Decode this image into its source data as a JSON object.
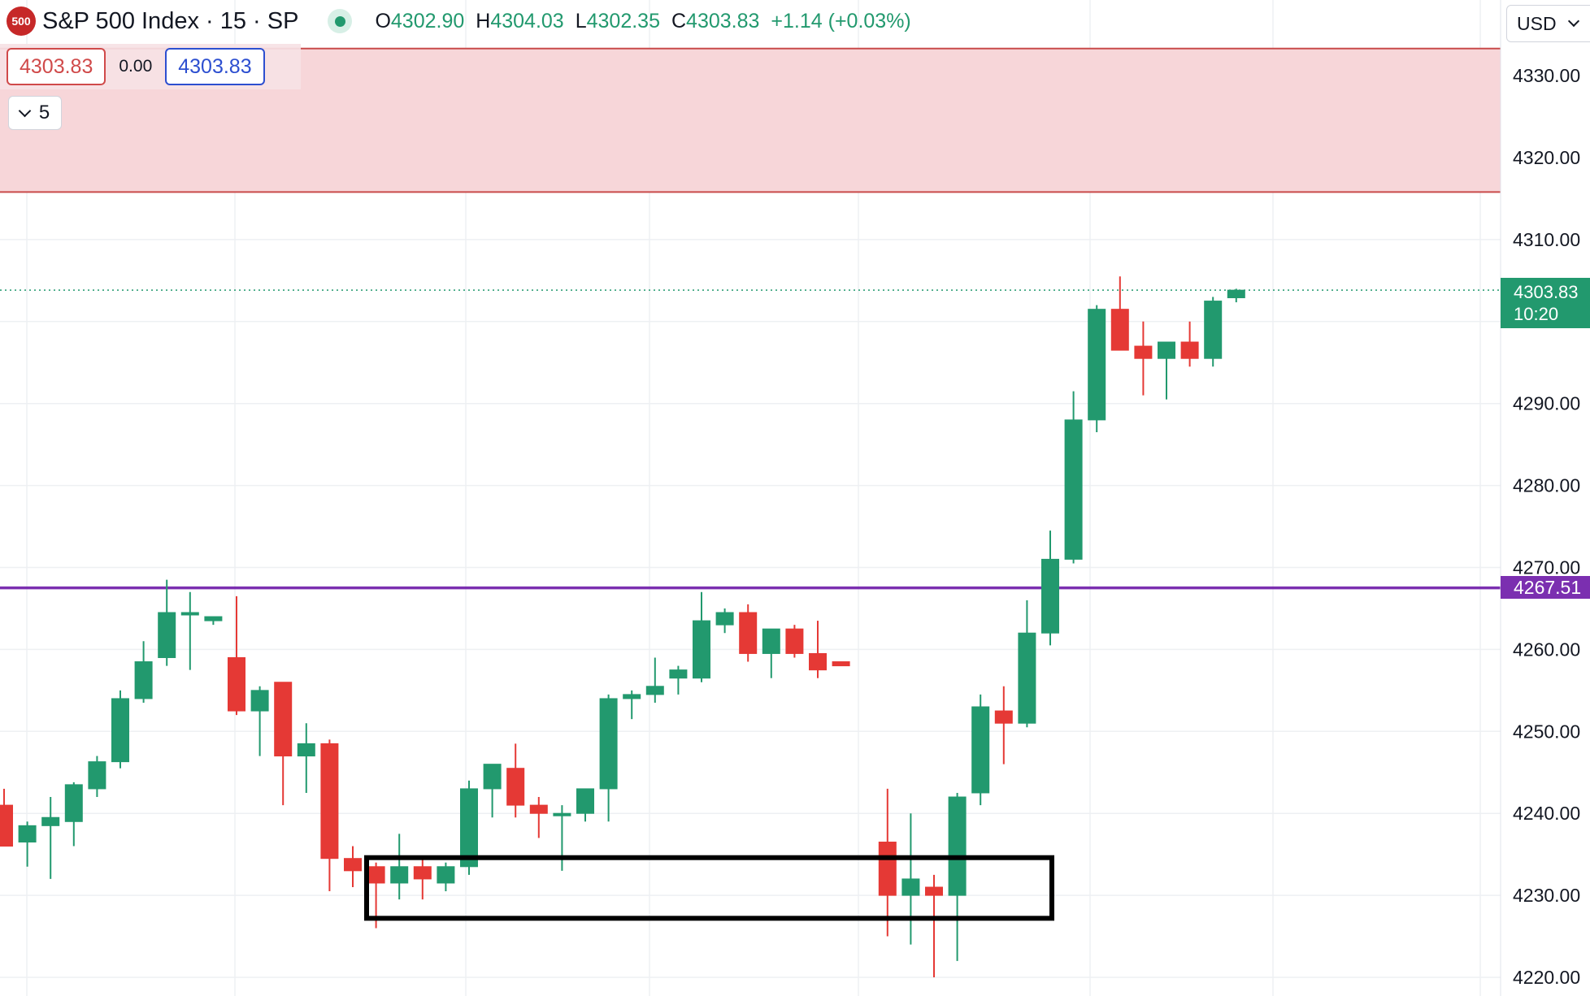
{
  "header": {
    "logo_text": "500",
    "title": "S&P 500 Index · 15 · SP",
    "ohlc": {
      "o_label": "O",
      "o": "4302.90",
      "h_label": "H",
      "h": "4304.03",
      "l_label": "L",
      "l": "4302.35",
      "c_label": "C",
      "c": "4303.83",
      "change": "+1.14 (+0.03%)"
    }
  },
  "trade": {
    "sell": "4303.83",
    "spread": "0.00",
    "buy": "4303.83"
  },
  "indicators_toggle": {
    "count": "5"
  },
  "currency": {
    "value": "USD"
  },
  "price_scale": {
    "last_price": "4303.83",
    "countdown": "10:20",
    "level_label": "4267.51"
  },
  "colors": {
    "up": "#22996e",
    "down": "#e53935",
    "zone_fill": "#f7d4d7",
    "zone_border": "#c94b4b",
    "level_line": "#7b2fb0",
    "box": "#000000"
  },
  "chart_data": {
    "type": "candlestick",
    "ylim": [
      4218,
      4336
    ],
    "y_ticks": [
      "4220.00",
      "4230.00",
      "4240.00",
      "4250.00",
      "4260.00",
      "4270.00",
      "4280.00",
      "4290.00",
      "4300.00",
      "4310.00",
      "4320.00",
      "4330.00"
    ],
    "last_price": 4303.83,
    "horizontal_level": 4267.51,
    "resistance_zone": [
      4315.8,
      4333.3
    ],
    "support_box": [
      4227.2,
      4234.6
    ],
    "candles": [
      {
        "o": 4241.0,
        "h": 4243.0,
        "l": 4237.0,
        "c": 4236.0
      },
      {
        "o": 4236.5,
        "h": 4239.0,
        "l": 4233.5,
        "c": 4238.5
      },
      {
        "o": 4238.5,
        "h": 4242.0,
        "l": 4232.0,
        "c": 4239.5
      },
      {
        "o": 4239.0,
        "h": 4243.8,
        "l": 4236.0,
        "c": 4243.5
      },
      {
        "o": 4243.0,
        "h": 4247.0,
        "l": 4242.0,
        "c": 4246.3
      },
      {
        "o": 4246.3,
        "h": 4255.0,
        "l": 4245.5,
        "c": 4254.0
      },
      {
        "o": 4254.0,
        "h": 4261.0,
        "l": 4253.5,
        "c": 4258.5
      },
      {
        "o": 4259.0,
        "h": 4268.5,
        "l": 4258.0,
        "c": 4264.5
      },
      {
        "o": 4264.5,
        "h": 4267.0,
        "l": 4257.5,
        "c": 4264.5
      },
      {
        "o": 4263.5,
        "h": 4264.0,
        "l": 4263.0,
        "c": 4264.0
      },
      {
        "o": 4259.0,
        "h": 4266.5,
        "l": 4252.0,
        "c": 4252.5
      },
      {
        "o": 4252.5,
        "h": 4255.5,
        "l": 4247.0,
        "c": 4255.0
      },
      {
        "o": 4256.0,
        "h": 4256.0,
        "l": 4241.0,
        "c": 4247.0
      },
      {
        "o": 4247.0,
        "h": 4251.0,
        "l": 4242.5,
        "c": 4248.5
      },
      {
        "o": 4248.5,
        "h": 4249.0,
        "l": 4230.5,
        "c": 4234.5
      },
      {
        "o": 4234.5,
        "h": 4236.0,
        "l": 4231.0,
        "c": 4233.0
      },
      {
        "o": 4233.5,
        "h": 4234.0,
        "l": 4226.0,
        "c": 4231.5
      },
      {
        "o": 4231.5,
        "h": 4237.5,
        "l": 4229.5,
        "c": 4233.5
      },
      {
        "o": 4233.5,
        "h": 4234.5,
        "l": 4229.5,
        "c": 4232.0
      },
      {
        "o": 4231.5,
        "h": 4234.0,
        "l": 4230.5,
        "c": 4233.5
      },
      {
        "o": 4233.5,
        "h": 4244.0,
        "l": 4232.5,
        "c": 4243.0
      },
      {
        "o": 4243.0,
        "h": 4246.0,
        "l": 4239.5,
        "c": 4246.0
      },
      {
        "o": 4245.5,
        "h": 4248.5,
        "l": 4239.5,
        "c": 4241.0
      },
      {
        "o": 4241.0,
        "h": 4242.0,
        "l": 4237.0,
        "c": 4240.0
      },
      {
        "o": 4240.0,
        "h": 4241.0,
        "l": 4233.0,
        "c": 4240.0
      },
      {
        "o": 4240.0,
        "h": 4243.0,
        "l": 4239.0,
        "c": 4243.0
      },
      {
        "o": 4243.0,
        "h": 4254.5,
        "l": 4239.0,
        "c": 4254.0
      },
      {
        "o": 4254.0,
        "h": 4255.0,
        "l": 4251.5,
        "c": 4254.5
      },
      {
        "o": 4254.5,
        "h": 4259.0,
        "l": 4253.5,
        "c": 4255.5
      },
      {
        "o": 4256.5,
        "h": 4258.0,
        "l": 4254.5,
        "c": 4257.5
      },
      {
        "o": 4256.5,
        "h": 4267.0,
        "l": 4256.0,
        "c": 4263.5
      },
      {
        "o": 4263.0,
        "h": 4265.0,
        "l": 4262.0,
        "c": 4264.5
      },
      {
        "o": 4264.5,
        "h": 4265.5,
        "l": 4258.5,
        "c": 4259.5
      },
      {
        "o": 4259.5,
        "h": 4262.5,
        "l": 4256.5,
        "c": 4262.5
      },
      {
        "o": 4262.5,
        "h": 4263.0,
        "l": 4259.0,
        "c": 4259.5
      },
      {
        "o": 4259.5,
        "h": 4263.5,
        "l": 4256.5,
        "c": 4257.5
      },
      {
        "o": 4258.5,
        "h": 4258.5,
        "l": 4258.0,
        "c": 4258.0
      },
      null,
      {
        "o": 4236.5,
        "h": 4243.0,
        "l": 4225.0,
        "c": 4230.0
      },
      {
        "o": 4230.0,
        "h": 4240.0,
        "l": 4224.0,
        "c": 4232.0
      },
      {
        "o": 4231.0,
        "h": 4232.5,
        "l": 4220.0,
        "c": 4230.0
      },
      {
        "o": 4230.0,
        "h": 4242.5,
        "l": 4222.0,
        "c": 4242.0
      },
      {
        "o": 4242.5,
        "h": 4254.5,
        "l": 4241.0,
        "c": 4253.0
      },
      {
        "o": 4252.5,
        "h": 4255.5,
        "l": 4246.0,
        "c": 4251.0
      },
      {
        "o": 4251.0,
        "h": 4266.0,
        "l": 4250.5,
        "c": 4262.0
      },
      {
        "o": 4262.0,
        "h": 4274.5,
        "l": 4260.5,
        "c": 4271.0
      },
      {
        "o": 4271.0,
        "h": 4291.5,
        "l": 4270.5,
        "c": 4288.0
      },
      {
        "o": 4288.0,
        "h": 4302.0,
        "l": 4286.5,
        "c": 4301.5
      },
      {
        "o": 4301.5,
        "h": 4305.5,
        "l": 4296.5,
        "c": 4296.5
      },
      {
        "o": 4297.0,
        "h": 4300.0,
        "l": 4291.0,
        "c": 4295.5
      },
      {
        "o": 4295.5,
        "h": 4297.5,
        "l": 4290.5,
        "c": 4297.5
      },
      {
        "o": 4297.5,
        "h": 4300.0,
        "l": 4294.5,
        "c": 4295.5
      },
      {
        "o": 4295.5,
        "h": 4303.0,
        "l": 4294.5,
        "c": 4302.5
      },
      {
        "o": 4302.9,
        "h": 4304.0,
        "l": 4302.35,
        "c": 4303.83
      }
    ]
  }
}
